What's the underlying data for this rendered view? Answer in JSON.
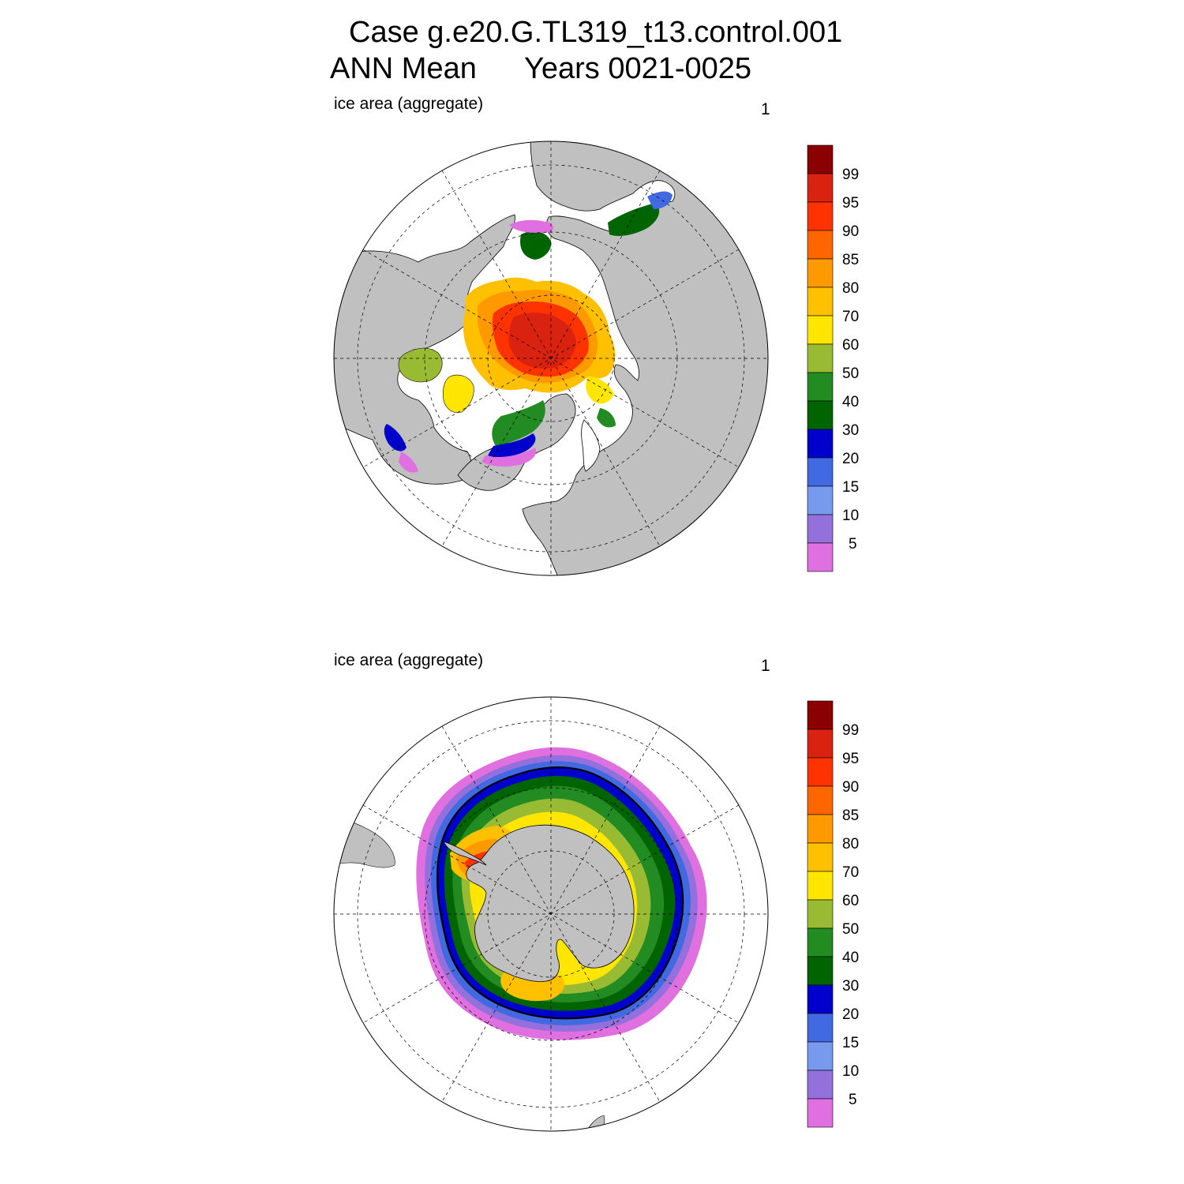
{
  "title": {
    "case": "Case g.e20.G.TL319_t13.control.001",
    "period": "ANN Mean",
    "years": "Years 0021-0025"
  },
  "colorbar": {
    "labels": [
      "99",
      "95",
      "90",
      "85",
      "80",
      "70",
      "60",
      "50",
      "40",
      "30",
      "20",
      "15",
      "10",
      "5"
    ],
    "colors": [
      "#8b0000",
      "#d9220f",
      "#ff3300",
      "#ff6600",
      "#ff9900",
      "#ffc000",
      "#ffe600",
      "#99bb33",
      "#228b22",
      "#006400",
      "#0000cd",
      "#4169e1",
      "#7799ee",
      "#9370db",
      "#e070e0"
    ]
  },
  "panels": [
    {
      "id": "nh",
      "label": "ice area  (aggregate)",
      "number": "1",
      "hemisphere": "north"
    },
    {
      "id": "sh",
      "label": "ice area  (aggregate)",
      "number": "1",
      "hemisphere": "south"
    }
  ],
  "map_colors": {
    "land": "#c0c0c0",
    "ocean": "#ffffff",
    "graticule": "#000000"
  }
}
